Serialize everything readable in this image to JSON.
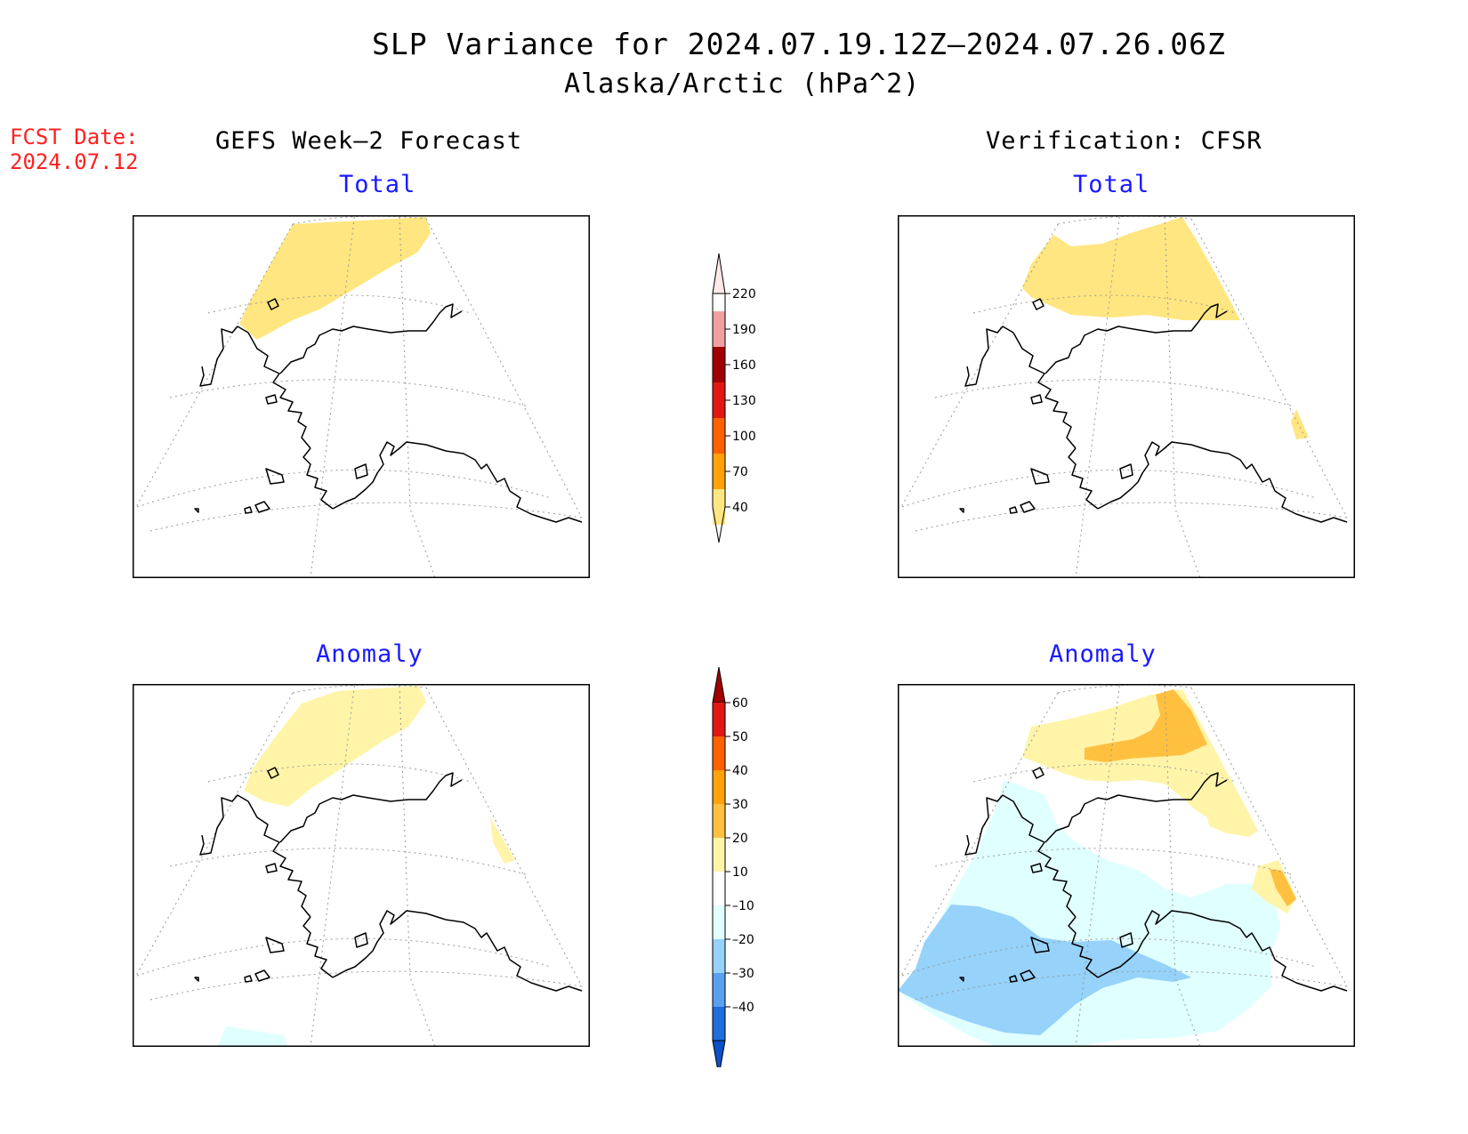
{
  "header": {
    "title": "SLP Variance for 2024.07.19.12Z–2024.07.26.06Z",
    "subtitle": "Alaska/Arctic (hPa^2)",
    "fcst_label": "FCST Date:",
    "fcst_date": "2024.07.12",
    "left_heading": "GEFS Week–2 Forecast",
    "right_heading": "Verification: CFSR"
  },
  "panels": {
    "gefs_total": {
      "label": "Total"
    },
    "cfsr_total": {
      "label": "Total"
    },
    "gefs_anomaly": {
      "label": "Anomaly"
    },
    "cfsr_anomaly": {
      "label": "Anomaly"
    }
  },
  "colorbars": {
    "total": {
      "levels": [
        "40",
        "70",
        "100",
        "130",
        "160",
        "190",
        "220"
      ],
      "colors": [
        "#ffe680",
        "#ffa10a",
        "#ff6000",
        "#e01810",
        "#a00000",
        "#f0a0a0",
        "#ffe8e8"
      ]
    },
    "anomaly": {
      "levels": [
        "60",
        "50",
        "40",
        "30",
        "20",
        "10",
        "–10",
        "–20",
        "–30",
        "–40"
      ],
      "colors_top_down": [
        "#a00000",
        "#e01810",
        "#ff6000",
        "#ffa10a",
        "#ffc040",
        "#fff4a8",
        "#ffffff",
        "#e0ffff",
        "#96d2fa",
        "#5aa0f0",
        "#1e6edc",
        "#0a50c8"
      ]
    }
  }
}
